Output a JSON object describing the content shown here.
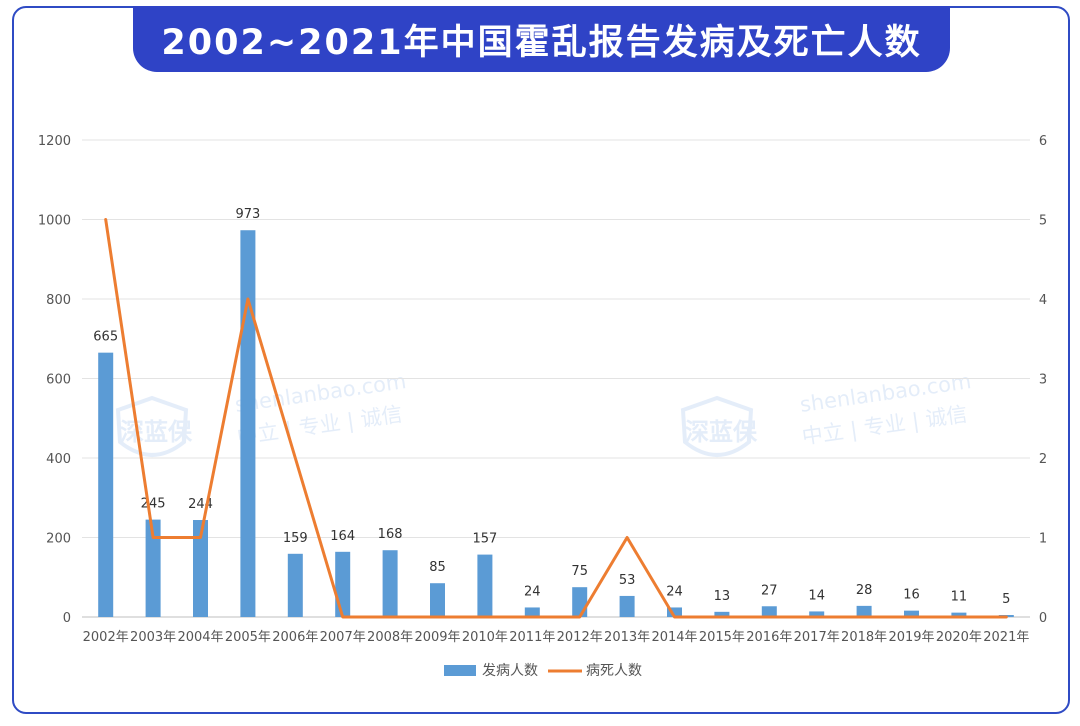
{
  "title": "2002~2021年中国霍乱报告发病及死亡人数",
  "watermark": {
    "logo_text": "深蓝保",
    "domain": "shenlanbao.com",
    "slogan": "中立 | 专业 | 诚信"
  },
  "colors": {
    "title_bg": "#2f43c6",
    "frame": "#2f4bc4",
    "bars": "#5b9bd5",
    "line": "#ed7d31"
  },
  "chart_data": {
    "type": "bar",
    "categories": [
      "2002年",
      "2003年",
      "2004年",
      "2005年",
      "2006年",
      "2007年",
      "2008年",
      "2009年",
      "2010年",
      "2011年",
      "2012年",
      "2013年",
      "2014年",
      "2015年",
      "2016年",
      "2017年",
      "2018年",
      "2019年",
      "2020年",
      "2021年"
    ],
    "series": [
      {
        "name": "发病人数",
        "type": "bar",
        "axis": "left",
        "values": [
          665,
          245,
          244,
          973,
          159,
          164,
          168,
          85,
          157,
          24,
          75,
          53,
          24,
          13,
          27,
          14,
          28,
          16,
          11,
          5
        ]
      },
      {
        "name": "病死人数",
        "type": "line",
        "axis": "right",
        "values": [
          5,
          1,
          1,
          4,
          2,
          0,
          0,
          0,
          0,
          0,
          0,
          1,
          0,
          0,
          0,
          0,
          0,
          0,
          0,
          0
        ]
      }
    ],
    "y_left": {
      "min": 0,
      "max": 1200,
      "ticks": [
        "0",
        "200",
        "400",
        "600",
        "800",
        "1000",
        "1200"
      ]
    },
    "y_right": {
      "min": 0,
      "max": 6,
      "ticks": [
        "0",
        "1",
        "2",
        "3",
        "4",
        "5",
        "6"
      ]
    },
    "grid": true,
    "legend": "bottom-center"
  }
}
